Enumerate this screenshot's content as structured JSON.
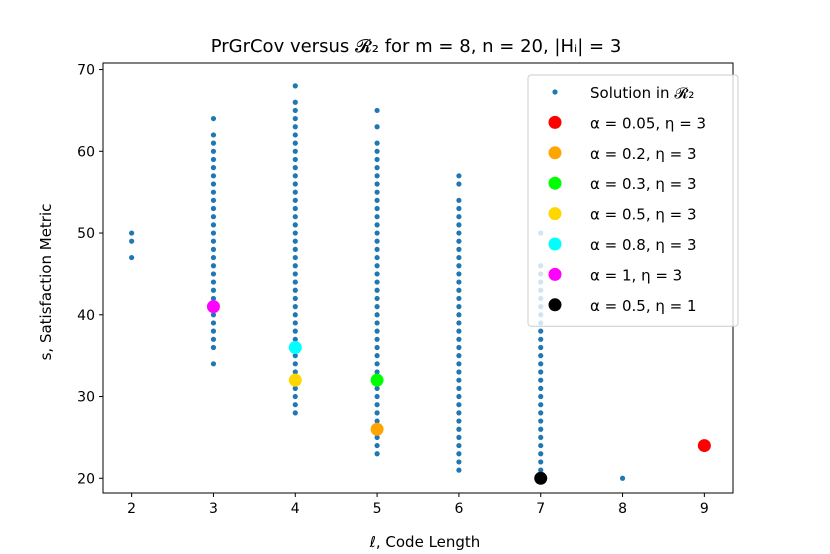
{
  "chart_data": {
    "type": "scatter",
    "title": "PrGrCov versus 𝓡₂ for m = 8, n = 20, |Hᵢ| = 3",
    "xlabel": "ℓ, Code Length",
    "ylabel": "s, Satisfaction Metric",
    "xlim": [
      1.65,
      9.35
    ],
    "ylim": [
      18.2,
      70.8
    ],
    "xticks": [
      2,
      3,
      4,
      5,
      6,
      7,
      8,
      9
    ],
    "yticks": [
      20,
      30,
      40,
      50,
      60,
      70
    ],
    "grid": false,
    "legend_position": "top-right",
    "series": [
      {
        "name": "Solution in 𝓡₂",
        "color": "#1f77b4",
        "marker_size": "small",
        "points": [
          {
            "x": 2,
            "y": [
              47,
              49,
              50
            ]
          },
          {
            "x": 3,
            "y": [
              34,
              36,
              37,
              38,
              39,
              40,
              41,
              42,
              43,
              44,
              45,
              46,
              47,
              48,
              49,
              50,
              51,
              52,
              53,
              54,
              55,
              56,
              57,
              58,
              59,
              60,
              61,
              62,
              64
            ]
          },
          {
            "x": 4,
            "y": [
              28,
              29,
              30,
              31,
              32,
              33,
              34,
              35,
              36,
              37,
              38,
              39,
              40,
              41,
              42,
              43,
              44,
              45,
              46,
              47,
              48,
              49,
              50,
              51,
              52,
              53,
              54,
              55,
              56,
              57,
              58,
              59,
              60,
              61,
              62,
              63,
              64,
              65,
              66,
              68
            ]
          },
          {
            "x": 5,
            "y": [
              23,
              24,
              25,
              26,
              27,
              28,
              29,
              30,
              31,
              32,
              33,
              34,
              35,
              36,
              37,
              38,
              39,
              40,
              41,
              42,
              43,
              44,
              45,
              46,
              47,
              48,
              49,
              50,
              51,
              52,
              53,
              54,
              55,
              56,
              57,
              58,
              59,
              60,
              61,
              63,
              65
            ]
          },
          {
            "x": 6,
            "y": [
              21,
              22,
              23,
              24,
              25,
              26,
              27,
              28,
              29,
              30,
              31,
              32,
              33,
              34,
              35,
              36,
              37,
              38,
              39,
              40,
              41,
              42,
              43,
              44,
              45,
              46,
              47,
              48,
              49,
              50,
              51,
              52,
              53,
              54,
              56,
              57
            ]
          },
          {
            "x": 7,
            "y": [
              20,
              21,
              22,
              23,
              24,
              25,
              26,
              27,
              28,
              29,
              30,
              31,
              32,
              33,
              34,
              35,
              36,
              37,
              38,
              39,
              40,
              41,
              42,
              43,
              44,
              45,
              46,
              50
            ]
          },
          {
            "x": 8,
            "y": [
              20
            ]
          }
        ]
      },
      {
        "name": "α = 0.05, η = 3",
        "color": "#ff0000",
        "x": 9,
        "y": 24
      },
      {
        "name": "α = 0.2, η = 3",
        "color": "#ffa500",
        "x": 5,
        "y": 26,
        "extra": [
          {
            "x": 4,
            "y": 32,
            "color": "#ffd700"
          }
        ]
      },
      {
        "name": "α = 0.3, η = 3",
        "color": "#00ff00",
        "x": 5,
        "y": 32
      },
      {
        "name": "α = 0.5, η = 3",
        "color": "#ffd700",
        "x": 4,
        "y": 32
      },
      {
        "name": "α = 0.8, η = 3",
        "color": "#00ffff",
        "x": 4,
        "y": 36
      },
      {
        "name": "α = 1, η = 3",
        "color": "#ff00ff",
        "x": 3,
        "y": 41
      },
      {
        "name": "α = 0.5, η = 1",
        "color": "#000000",
        "x": 7,
        "y": 20
      }
    ]
  },
  "legend": [
    {
      "label": "Solution in 𝓡₂",
      "color": "#1f77b4",
      "small": true
    },
    {
      "label": "α = 0.05, η = 3",
      "color": "#ff0000"
    },
    {
      "label": "α = 0.2, η = 3",
      "color": "#ffa500"
    },
    {
      "label": "α = 0.3, η = 3",
      "color": "#00ff00"
    },
    {
      "label": "α = 0.5, η = 3",
      "color": "#ffd700"
    },
    {
      "label": "α = 0.8, η = 3",
      "color": "#00ffff"
    },
    {
      "label": "α = 1, η = 3",
      "color": "#ff00ff"
    },
    {
      "label": "α = 0.5, η = 1",
      "color": "#000000"
    }
  ]
}
